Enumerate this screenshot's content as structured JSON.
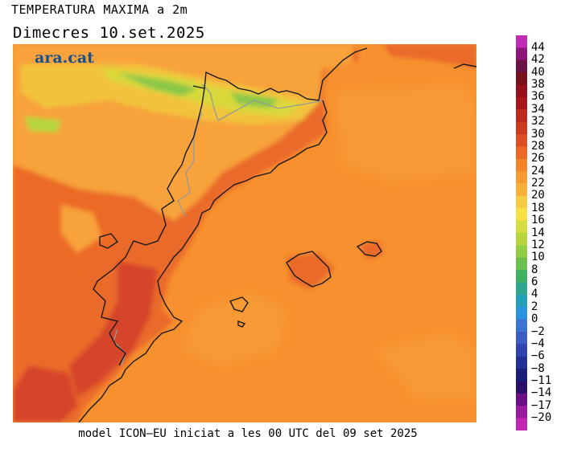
{
  "header": {
    "title": "TEMPERATURA MAXIMA a 2m",
    "subtitle": "Dimecres   10.set.2025"
  },
  "brand": {
    "logo_text": "ara.cat",
    "color": "#1b4f8a"
  },
  "footer": {
    "text": "model ICON—EU iniciat a les 00 UTC del 09 set 2025"
  },
  "map": {
    "sea_color": "#f7902e",
    "land_colors": {
      "hot": "#ea6a2a",
      "very_hot": "#d6452a",
      "warm": "#f7a23a",
      "mild": "#f2c23c",
      "cool": "#d9d83a",
      "cold": "#8cc84a"
    },
    "coastline_color": "#1a1a1a",
    "border_color": "#9a9a9a"
  },
  "legend": {
    "labels": [
      "44",
      "42",
      "40",
      "38",
      "36",
      "34",
      "32",
      "30",
      "28",
      "26",
      "24",
      "22",
      "20",
      "18",
      "16",
      "14",
      "12",
      "10",
      "8",
      "6",
      "4",
      "2",
      "0",
      "−2",
      "−4",
      "−6",
      "−8",
      "−11",
      "−14",
      "−17",
      "−20"
    ],
    "colors": [
      "#c22bb4",
      "#8e1679",
      "#6b1246",
      "#7a0f1c",
      "#94101c",
      "#a8151c",
      "#bc2a1e",
      "#cc3a20",
      "#dd4f22",
      "#ec6a26",
      "#f4832a",
      "#f79a30",
      "#f8b23a",
      "#f8cc40",
      "#f6e244",
      "#d6dd40",
      "#b5d63e",
      "#94cc44",
      "#6cbf4e",
      "#42b062",
      "#2ca78c",
      "#229fb6",
      "#2b92e0",
      "#3a74d6",
      "#3c5bc6",
      "#2f44b0",
      "#233198",
      "#1a1f7a",
      "#2b0f6a",
      "#6a0f86",
      "#9c1aa2",
      "#c126b6"
    ]
  }
}
